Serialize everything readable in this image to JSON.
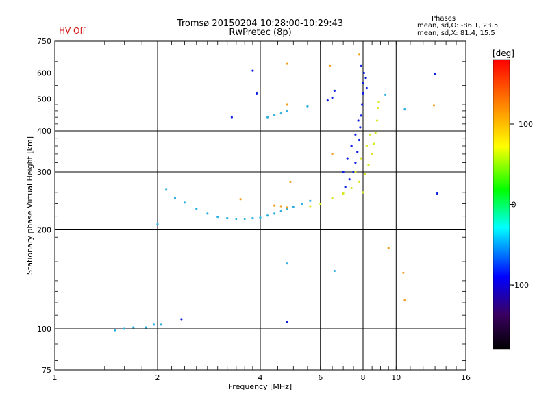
{
  "header": {
    "hv_status": "HV Off",
    "title_line1": "Tromsø 20150204 10:28:00-10:29:43",
    "title_line2": "RwPretec (8p)",
    "phases_title": "Phases",
    "phases_o": "mean, sd,O: -86.1, 23.5",
    "phases_x": "mean, sd,X:  81.4, 15.5"
  },
  "chart_data": {
    "type": "scatter",
    "xlabel": "Frequency [MHz]",
    "ylabel": "Stationary phase Virtual Height [km]",
    "xscale": "log",
    "yscale": "log",
    "xlim": [
      1,
      16
    ],
    "ylim": [
      75,
      750
    ],
    "x_ticks": [
      1,
      2,
      4,
      6,
      8,
      10,
      16
    ],
    "y_ticks": [
      75,
      100,
      200,
      300,
      400,
      500,
      600,
      750
    ],
    "grid": true,
    "colorbar": {
      "label": "[deg]",
      "range": [
        -180,
        180
      ],
      "ticks": [
        100,
        0,
        -100
      ],
      "colors": [
        "#000000",
        "#3a0060",
        "#0000ff",
        "#00ffff",
        "#00ff00",
        "#ffff00",
        "#ff8000",
        "#ff0000"
      ]
    },
    "series": [
      {
        "color": "#1020e0",
        "points": [
          [
            0.5,
            7.1,
            270
          ],
          [
            0.5,
            7.3,
            285
          ],
          [
            0.5,
            7.5,
            300
          ],
          [
            0.5,
            7.6,
            320
          ],
          [
            0.5,
            7.7,
            345
          ],
          [
            0.5,
            7.8,
            375
          ],
          [
            0.5,
            7.85,
            410
          ],
          [
            0.5,
            7.9,
            445
          ],
          [
            0.5,
            7.95,
            480
          ],
          [
            0.5,
            8.0,
            520
          ],
          [
            0.5,
            8.0,
            560
          ],
          [
            0.5,
            8.05,
            600
          ],
          [
            0.5,
            7.9,
            630
          ],
          [
            0.5,
            8.15,
            580
          ],
          [
            0.5,
            8.2,
            540
          ],
          [
            0.5,
            6.3,
            495
          ],
          [
            0.5,
            6.5,
            505
          ],
          [
            0.5,
            6.6,
            530
          ],
          [
            0.5,
            3.8,
            610
          ],
          [
            0.5,
            3.9,
            520
          ],
          [
            0.5,
            4.8,
            105
          ],
          [
            0.5,
            13.2,
            258
          ],
          [
            0.5,
            13.0,
            595
          ],
          [
            0.5,
            2.35,
            107
          ],
          [
            0.5,
            3.3,
            440
          ],
          [
            0.5,
            7.0,
            300
          ],
          [
            0.5,
            7.2,
            330
          ],
          [
            0.5,
            7.4,
            360
          ],
          [
            0.5,
            7.6,
            390
          ],
          [
            0.5,
            7.75,
            430
          ]
        ]
      },
      {
        "color": "#30b0e0",
        "points": [
          [
            0.5,
            2.12,
            265
          ],
          [
            0.5,
            2.25,
            250
          ],
          [
            0.5,
            2.4,
            242
          ],
          [
            0.5,
            2.6,
            232
          ],
          [
            0.5,
            2.8,
            224
          ],
          [
            0.5,
            3.0,
            219
          ],
          [
            0.5,
            3.2,
            217
          ],
          [
            0.5,
            3.4,
            216
          ],
          [
            0.5,
            3.6,
            216
          ],
          [
            0.5,
            3.8,
            217
          ],
          [
            0.5,
            4.0,
            218
          ],
          [
            0.5,
            4.2,
            221
          ],
          [
            0.5,
            4.4,
            224
          ],
          [
            0.5,
            4.6,
            228
          ],
          [
            0.5,
            4.8,
            232
          ],
          [
            0.5,
            5.0,
            235
          ],
          [
            0.5,
            5.3,
            240
          ],
          [
            0.5,
            5.6,
            245
          ],
          [
            0.5,
            1.5,
            99
          ],
          [
            0.5,
            1.6,
            100
          ],
          [
            0.5,
            1.7,
            101
          ],
          [
            0.5,
            1.85,
            101
          ],
          [
            0.5,
            1.95,
            103
          ],
          [
            0.5,
            2.05,
            103
          ],
          [
            0.5,
            4.2,
            440
          ],
          [
            0.5,
            4.4,
            446
          ],
          [
            0.5,
            4.6,
            452
          ],
          [
            0.5,
            4.8,
            460
          ],
          [
            0.5,
            5.5,
            475
          ],
          [
            0.5,
            2.0,
            208
          ],
          [
            0.5,
            4.8,
            158
          ],
          [
            0.5,
            6.6,
            150
          ],
          [
            0.5,
            9.3,
            515
          ],
          [
            0.5,
            10.6,
            465
          ]
        ]
      },
      {
        "color": "#d8e820",
        "points": [
          [
            0.5,
            6.0,
            240
          ],
          [
            0.5,
            6.5,
            250
          ],
          [
            0.5,
            7.0,
            258
          ],
          [
            0.5,
            7.4,
            268
          ],
          [
            0.5,
            7.8,
            280
          ],
          [
            0.5,
            8.1,
            295
          ],
          [
            0.5,
            8.3,
            315
          ],
          [
            0.5,
            8.5,
            340
          ],
          [
            0.5,
            8.6,
            365
          ],
          [
            0.5,
            8.7,
            395
          ],
          [
            0.5,
            8.8,
            430
          ],
          [
            0.5,
            8.85,
            470
          ],
          [
            0.5,
            8.9,
            490
          ],
          [
            0.5,
            7.6,
            300
          ],
          [
            0.5,
            7.9,
            330
          ],
          [
            0.5,
            8.2,
            360
          ],
          [
            0.5,
            8.4,
            390
          ],
          [
            0.5,
            8.0,
            260
          ],
          [
            0.5,
            5.6,
            236
          ]
        ]
      },
      {
        "color": "#f0a020",
        "points": [
          [
            0.5,
            4.4,
            237
          ],
          [
            0.5,
            4.6,
            236
          ],
          [
            0.5,
            4.8,
            234
          ],
          [
            0.5,
            3.5,
            248
          ],
          [
            0.5,
            4.8,
            640
          ],
          [
            0.5,
            4.8,
            480
          ],
          [
            0.5,
            6.5,
            340
          ],
          [
            0.5,
            10.5,
            148
          ],
          [
            0.5,
            10.6,
            122
          ],
          [
            0.5,
            12.9,
            478
          ],
          [
            0.5,
            7.8,
            682
          ],
          [
            0.5,
            9.5,
            176
          ],
          [
            0.5,
            6.4,
            630
          ],
          [
            0.5,
            4.9,
            280
          ]
        ]
      }
    ]
  }
}
